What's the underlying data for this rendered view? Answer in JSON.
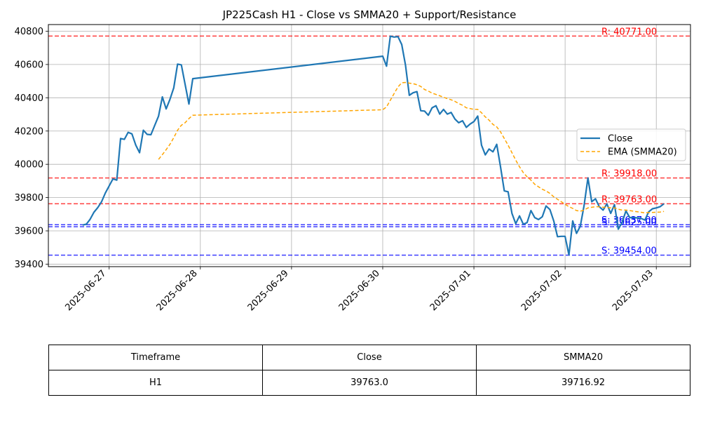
{
  "chart_data": {
    "type": "line",
    "title": "JP225Cash H1 - Close vs SMMA20 + Support/Resistance",
    "xlabel": "",
    "ylabel": "",
    "ylim": [
      39385,
      40840
    ],
    "xlim": [
      "2025-06-26 08:00",
      "2025-07-03 09:00"
    ],
    "x_ticks": [
      "2025-06-27",
      "2025-06-28",
      "2025-06-29",
      "2025-06-30",
      "2025-07-01",
      "2025-07-02",
      "2025-07-03"
    ],
    "y_ticks": [
      39400,
      39600,
      39800,
      40000,
      40200,
      40400,
      40600,
      40800
    ],
    "grid": true,
    "legend_position": "center-right",
    "series": [
      {
        "name": "Close",
        "color": "#1f77b4",
        "points": [
          [
            "2025-06-26 17:00",
            39635
          ],
          [
            "2025-06-26 18:00",
            39640
          ],
          [
            "2025-06-26 19:00",
            39670
          ],
          [
            "2025-06-26 20:00",
            39712
          ],
          [
            "2025-06-26 21:00",
            39740
          ],
          [
            "2025-06-26 22:00",
            39775
          ],
          [
            "2025-06-26 23:00",
            39828
          ],
          [
            "2025-06-27 00:00",
            39870
          ],
          [
            "2025-06-27 01:00",
            39912
          ],
          [
            "2025-06-27 02:00",
            39905
          ],
          [
            "2025-06-27 03:00",
            40155
          ],
          [
            "2025-06-27 04:00",
            40150
          ],
          [
            "2025-06-27 05:00",
            40192
          ],
          [
            "2025-06-27 06:00",
            40183
          ],
          [
            "2025-06-27 07:00",
            40115
          ],
          [
            "2025-06-27 08:00",
            40070
          ],
          [
            "2025-06-27 09:00",
            40205
          ],
          [
            "2025-06-27 10:00",
            40180
          ],
          [
            "2025-06-27 11:00",
            40178
          ],
          [
            "2025-06-27 12:00",
            40235
          ],
          [
            "2025-06-27 13:00",
            40290
          ],
          [
            "2025-06-27 14:00",
            40405
          ],
          [
            "2025-06-27 15:00",
            40333
          ],
          [
            "2025-06-27 16:00",
            40390
          ],
          [
            "2025-06-27 17:00",
            40460
          ],
          [
            "2025-06-27 18:00",
            40602
          ],
          [
            "2025-06-27 19:00",
            40598
          ],
          [
            "2025-06-27 20:00",
            40480
          ],
          [
            "2025-06-27 21:00",
            40362
          ],
          [
            "2025-06-27 22:00",
            40515
          ],
          [
            "2025-06-30 00:00",
            40650
          ],
          [
            "2025-06-30 01:00",
            40590
          ],
          [
            "2025-06-30 02:00",
            40770
          ],
          [
            "2025-06-30 03:00",
            40765
          ],
          [
            "2025-06-30 04:00",
            40768
          ],
          [
            "2025-06-30 05:00",
            40720
          ],
          [
            "2025-06-30 06:00",
            40595
          ],
          [
            "2025-06-30 07:00",
            40415
          ],
          [
            "2025-06-30 08:00",
            40430
          ],
          [
            "2025-06-30 09:00",
            40437
          ],
          [
            "2025-06-30 10:00",
            40322
          ],
          [
            "2025-06-30 11:00",
            40320
          ],
          [
            "2025-06-30 12:00",
            40295
          ],
          [
            "2025-06-30 13:00",
            40340
          ],
          [
            "2025-06-30 14:00",
            40352
          ],
          [
            "2025-06-30 15:00",
            40302
          ],
          [
            "2025-06-30 16:00",
            40330
          ],
          [
            "2025-06-30 17:00",
            40302
          ],
          [
            "2025-06-30 18:00",
            40312
          ],
          [
            "2025-06-30 19:00",
            40272
          ],
          [
            "2025-06-30 20:00",
            40250
          ],
          [
            "2025-06-30 21:00",
            40262
          ],
          [
            "2025-06-30 22:00",
            40222
          ],
          [
            "2025-06-30 23:00",
            40242
          ],
          [
            "2025-07-01 00:00",
            40257
          ],
          [
            "2025-07-01 01:00",
            40290
          ],
          [
            "2025-07-01 02:00",
            40115
          ],
          [
            "2025-07-01 03:00",
            40057
          ],
          [
            "2025-07-01 04:00",
            40092
          ],
          [
            "2025-07-01 05:00",
            40075
          ],
          [
            "2025-07-01 06:00",
            40120
          ],
          [
            "2025-07-01 07:00",
            39985
          ],
          [
            "2025-07-01 08:00",
            39840
          ],
          [
            "2025-07-01 09:00",
            39835
          ],
          [
            "2025-07-01 10:00",
            39705
          ],
          [
            "2025-07-01 11:00",
            39643
          ],
          [
            "2025-07-01 12:00",
            39690
          ],
          [
            "2025-07-01 13:00",
            39640
          ],
          [
            "2025-07-01 14:00",
            39650
          ],
          [
            "2025-07-01 15:00",
            39722
          ],
          [
            "2025-07-01 16:00",
            39680
          ],
          [
            "2025-07-01 17:00",
            39668
          ],
          [
            "2025-07-01 18:00",
            39685
          ],
          [
            "2025-07-01 19:00",
            39750
          ],
          [
            "2025-07-01 20:00",
            39728
          ],
          [
            "2025-07-01 21:00",
            39660
          ],
          [
            "2025-07-01 22:00",
            39565
          ],
          [
            "2025-07-01 23:00",
            39567
          ],
          [
            "2025-07-02 00:00",
            39567
          ],
          [
            "2025-07-02 01:00",
            39455
          ],
          [
            "2025-07-02 02:00",
            39660
          ],
          [
            "2025-07-02 03:00",
            39585
          ],
          [
            "2025-07-02 04:00",
            39628
          ],
          [
            "2025-07-02 05:00",
            39752
          ],
          [
            "2025-07-02 06:00",
            39918
          ],
          [
            "2025-07-02 07:00",
            39775
          ],
          [
            "2025-07-02 08:00",
            39793
          ],
          [
            "2025-07-02 09:00",
            39745
          ],
          [
            "2025-07-02 10:00",
            39725
          ],
          [
            "2025-07-02 11:00",
            39762
          ],
          [
            "2025-07-02 12:00",
            39705
          ],
          [
            "2025-07-02 13:00",
            39758
          ],
          [
            "2025-07-02 14:00",
            39610
          ],
          [
            "2025-07-02 15:00",
            39650
          ],
          [
            "2025-07-02 16:00",
            39720
          ],
          [
            "2025-07-02 17:00",
            39680
          ],
          [
            "2025-07-02 18:00",
            39680
          ],
          [
            "2025-07-02 19:00",
            39678
          ],
          [
            "2025-07-02 20:00",
            39675
          ],
          [
            "2025-07-02 21:00",
            39665
          ],
          [
            "2025-07-02 22:00",
            39715
          ],
          [
            "2025-07-02 23:00",
            39733
          ],
          [
            "2025-07-03 00:00",
            39738
          ],
          [
            "2025-07-03 01:00",
            39745
          ],
          [
            "2025-07-03 02:00",
            39763
          ]
        ]
      },
      {
        "name": "EMA (SMMA20)",
        "color": "#ffa500",
        "style": "dashed",
        "points": [
          [
            "2025-06-27 13:00",
            40030
          ],
          [
            "2025-06-27 14:00",
            40058
          ],
          [
            "2025-06-27 15:00",
            40088
          ],
          [
            "2025-06-27 16:00",
            40120
          ],
          [
            "2025-06-27 17:00",
            40160
          ],
          [
            "2025-06-27 18:00",
            40205
          ],
          [
            "2025-06-27 19:00",
            40235
          ],
          [
            "2025-06-27 20:00",
            40250
          ],
          [
            "2025-06-27 21:00",
            40275
          ],
          [
            "2025-06-27 22:00",
            40295
          ],
          [
            "2025-06-30 00:00",
            40328
          ],
          [
            "2025-06-30 01:00",
            40345
          ],
          [
            "2025-06-30 02:00",
            40385
          ],
          [
            "2025-06-30 03:00",
            40425
          ],
          [
            "2025-06-30 04:00",
            40465
          ],
          [
            "2025-06-30 05:00",
            40490
          ],
          [
            "2025-06-30 06:00",
            40492
          ],
          [
            "2025-06-30 07:00",
            40488
          ],
          [
            "2025-06-30 08:00",
            40485
          ],
          [
            "2025-06-30 09:00",
            40478
          ],
          [
            "2025-06-30 10:00",
            40468
          ],
          [
            "2025-06-30 11:00",
            40450
          ],
          [
            "2025-06-30 12:00",
            40440
          ],
          [
            "2025-06-30 13:00",
            40428
          ],
          [
            "2025-06-30 14:00",
            40420
          ],
          [
            "2025-06-30 15:00",
            40412
          ],
          [
            "2025-06-30 16:00",
            40403
          ],
          [
            "2025-06-30 17:00",
            40395
          ],
          [
            "2025-06-30 18:00",
            40388
          ],
          [
            "2025-06-30 19:00",
            40378
          ],
          [
            "2025-06-30 20:00",
            40365
          ],
          [
            "2025-06-30 21:00",
            40355
          ],
          [
            "2025-06-30 22:00",
            40340
          ],
          [
            "2025-06-30 23:00",
            40335
          ],
          [
            "2025-07-01 00:00",
            40330
          ],
          [
            "2025-07-01 01:00",
            40330
          ],
          [
            "2025-07-01 02:00",
            40310
          ],
          [
            "2025-07-01 03:00",
            40285
          ],
          [
            "2025-07-01 04:00",
            40265
          ],
          [
            "2025-07-01 05:00",
            40240
          ],
          [
            "2025-07-01 06:00",
            40225
          ],
          [
            "2025-07-01 07:00",
            40195
          ],
          [
            "2025-07-01 08:00",
            40155
          ],
          [
            "2025-07-01 09:00",
            40115
          ],
          [
            "2025-07-01 10:00",
            40070
          ],
          [
            "2025-07-01 11:00",
            40025
          ],
          [
            "2025-07-01 12:00",
            39985
          ],
          [
            "2025-07-01 13:00",
            39950
          ],
          [
            "2025-07-01 14:00",
            39925
          ],
          [
            "2025-07-01 15:00",
            39905
          ],
          [
            "2025-07-01 16:00",
            39880
          ],
          [
            "2025-07-01 17:00",
            39865
          ],
          [
            "2025-07-01 18:00",
            39850
          ],
          [
            "2025-07-01 19:00",
            39840
          ],
          [
            "2025-07-01 20:00",
            39825
          ],
          [
            "2025-07-01 21:00",
            39805
          ],
          [
            "2025-07-01 22:00",
            39790
          ],
          [
            "2025-07-01 23:00",
            39775
          ],
          [
            "2025-07-02 00:00",
            39760
          ],
          [
            "2025-07-02 01:00",
            39745
          ],
          [
            "2025-07-02 02:00",
            39735
          ],
          [
            "2025-07-02 03:00",
            39722
          ],
          [
            "2025-07-02 04:00",
            39718
          ],
          [
            "2025-07-02 05:00",
            39725
          ],
          [
            "2025-07-02 06:00",
            39738
          ],
          [
            "2025-07-02 07:00",
            39742
          ],
          [
            "2025-07-02 08:00",
            39745
          ],
          [
            "2025-07-02 09:00",
            39745
          ],
          [
            "2025-07-02 10:00",
            39742
          ],
          [
            "2025-07-02 11:00",
            39742
          ],
          [
            "2025-07-02 12:00",
            39738
          ],
          [
            "2025-07-02 13:00",
            39738
          ],
          [
            "2025-07-02 14:00",
            39730
          ],
          [
            "2025-07-02 15:00",
            39725
          ],
          [
            "2025-07-02 16:00",
            39725
          ],
          [
            "2025-07-02 17:00",
            39722
          ],
          [
            "2025-07-02 18:00",
            39718
          ],
          [
            "2025-07-02 19:00",
            39715
          ],
          [
            "2025-07-02 20:00",
            39712
          ],
          [
            "2025-07-02 21:00",
            39708
          ],
          [
            "2025-07-02 22:00",
            39710
          ],
          [
            "2025-07-02 23:00",
            39711
          ],
          [
            "2025-07-03 00:00",
            39712
          ],
          [
            "2025-07-03 01:00",
            39713
          ],
          [
            "2025-07-03 02:00",
            39717
          ]
        ]
      }
    ],
    "levels": [
      {
        "kind": "resistance",
        "value": 40771,
        "label": "R: 40771.00",
        "color": "#ff0000"
      },
      {
        "kind": "resistance",
        "value": 39918,
        "label": "R: 39918.00",
        "color": "#ff0000"
      },
      {
        "kind": "resistance",
        "value": 39763,
        "label": "R: 39763.00",
        "color": "#ff0000"
      },
      {
        "kind": "support",
        "value": 39637,
        "label": "S: 39637.00",
        "color": "#0000ff"
      },
      {
        "kind": "support",
        "value": 39625,
        "label": "S: 39625.00",
        "color": "#0000ff"
      },
      {
        "kind": "support",
        "value": 39454,
        "label": "S: 39454.00",
        "color": "#0000ff"
      }
    ]
  },
  "table": {
    "headers": [
      "Timeframe",
      "Close",
      "SMMA20"
    ],
    "rows": [
      [
        "H1",
        "39763.0",
        "39716.92"
      ]
    ]
  }
}
